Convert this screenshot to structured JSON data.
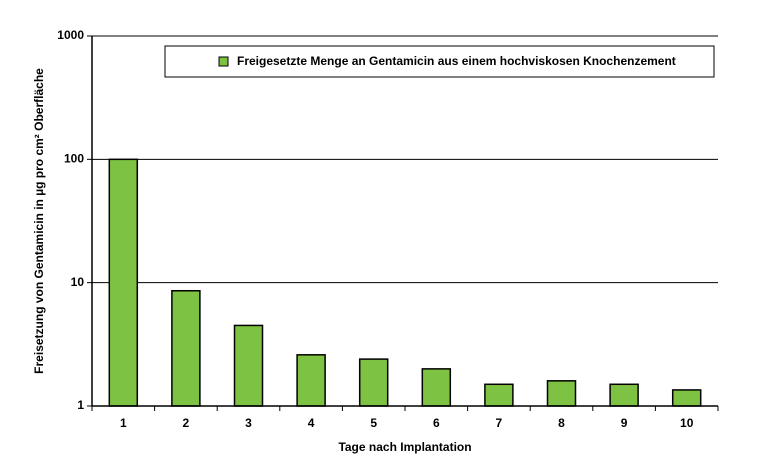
{
  "chart_data": {
    "type": "bar",
    "y_label": "Freisetzung von Gentamicin in  µg pro cm² Oberfläche",
    "x_label": "Tage nach Implantation",
    "categories": [
      "1",
      "2",
      "3",
      "4",
      "5",
      "6",
      "7",
      "8",
      "9",
      "10"
    ],
    "series": [
      {
        "name": "Freigesetzte Menge an Gentamicin aus einem hochviskosen Knochenzement",
        "color": "#7dc242",
        "values": [
          100,
          8.6,
          4.5,
          2.6,
          2.4,
          2.0,
          1.5,
          1.6,
          1.5,
          1.35
        ]
      }
    ],
    "ylim": [
      1,
      1000
    ],
    "yticks": [
      1,
      10,
      100,
      1000
    ],
    "log_y": true,
    "grid": true,
    "legend": "top-right"
  }
}
